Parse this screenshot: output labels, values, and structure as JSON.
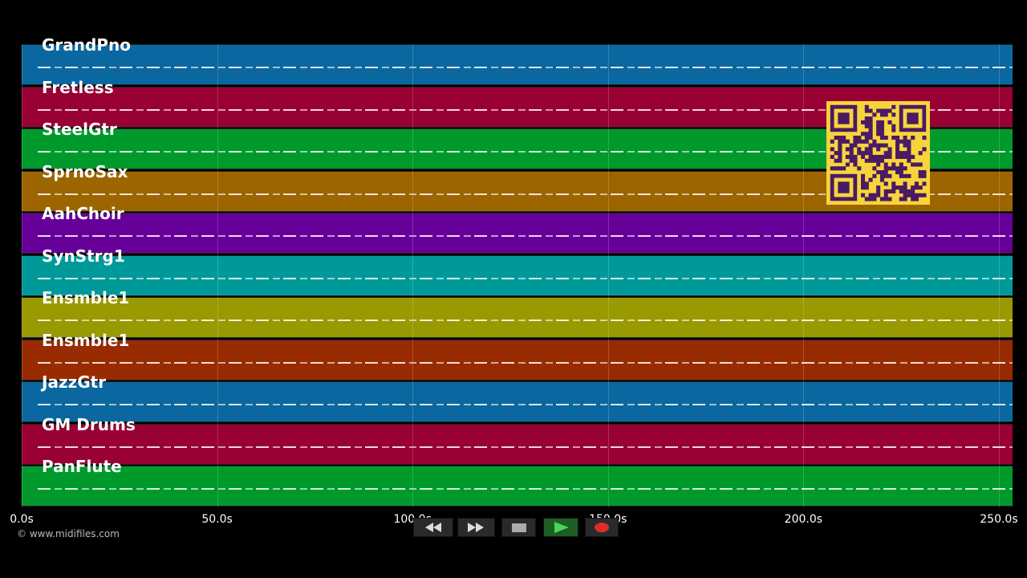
{
  "tracks": [
    "GrandPno",
    "Fretless",
    "SteelGtr",
    "SprnoSax",
    "AahChoir",
    "SynStrg1",
    "Ensmble1",
    "Ensmble1",
    "JazzGtr",
    "GM Drums",
    "PanFlute"
  ],
  "track_colors": [
    "#0b679f",
    "#990033",
    "#00992b",
    "#9c6500",
    "#660099",
    "#009999",
    "#999900",
    "#992b00",
    "#0b679f",
    "#990033",
    "#00992b"
  ],
  "timeline": {
    "xlim": [
      0,
      253.5
    ],
    "xticks": [
      {
        "value": 0,
        "label": "0.0s"
      },
      {
        "value": 50,
        "label": "50.0s"
      },
      {
        "value": 100,
        "label": "100.0s"
      },
      {
        "value": 150,
        "label": "150.0s"
      },
      {
        "value": 200,
        "label": "200.0s"
      },
      {
        "value": 250,
        "label": "250.0s"
      }
    ]
  },
  "copyright": "© www.midifiles.com"
}
